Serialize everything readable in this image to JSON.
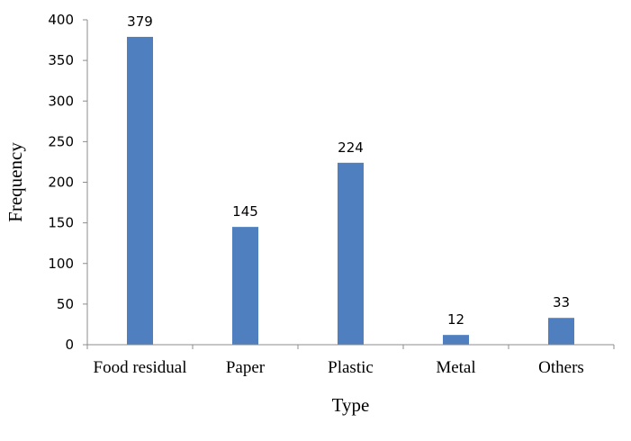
{
  "chart_data": {
    "type": "bar",
    "title": "",
    "xlabel": "Type",
    "ylabel": "Frequency",
    "categories": [
      "Food residual",
      "Paper",
      "Plastic",
      "Metal",
      "Others"
    ],
    "values": [
      379,
      145,
      224,
      12,
      33
    ],
    "data_labels": [
      "379",
      "145",
      "224",
      "12",
      "33"
    ],
    "ylim": [
      0,
      400
    ],
    "yticks": [
      0,
      50,
      100,
      150,
      200,
      250,
      300,
      350,
      400
    ],
    "grid": false,
    "legend": "none",
    "bar_color": "#4f7fbf"
  }
}
